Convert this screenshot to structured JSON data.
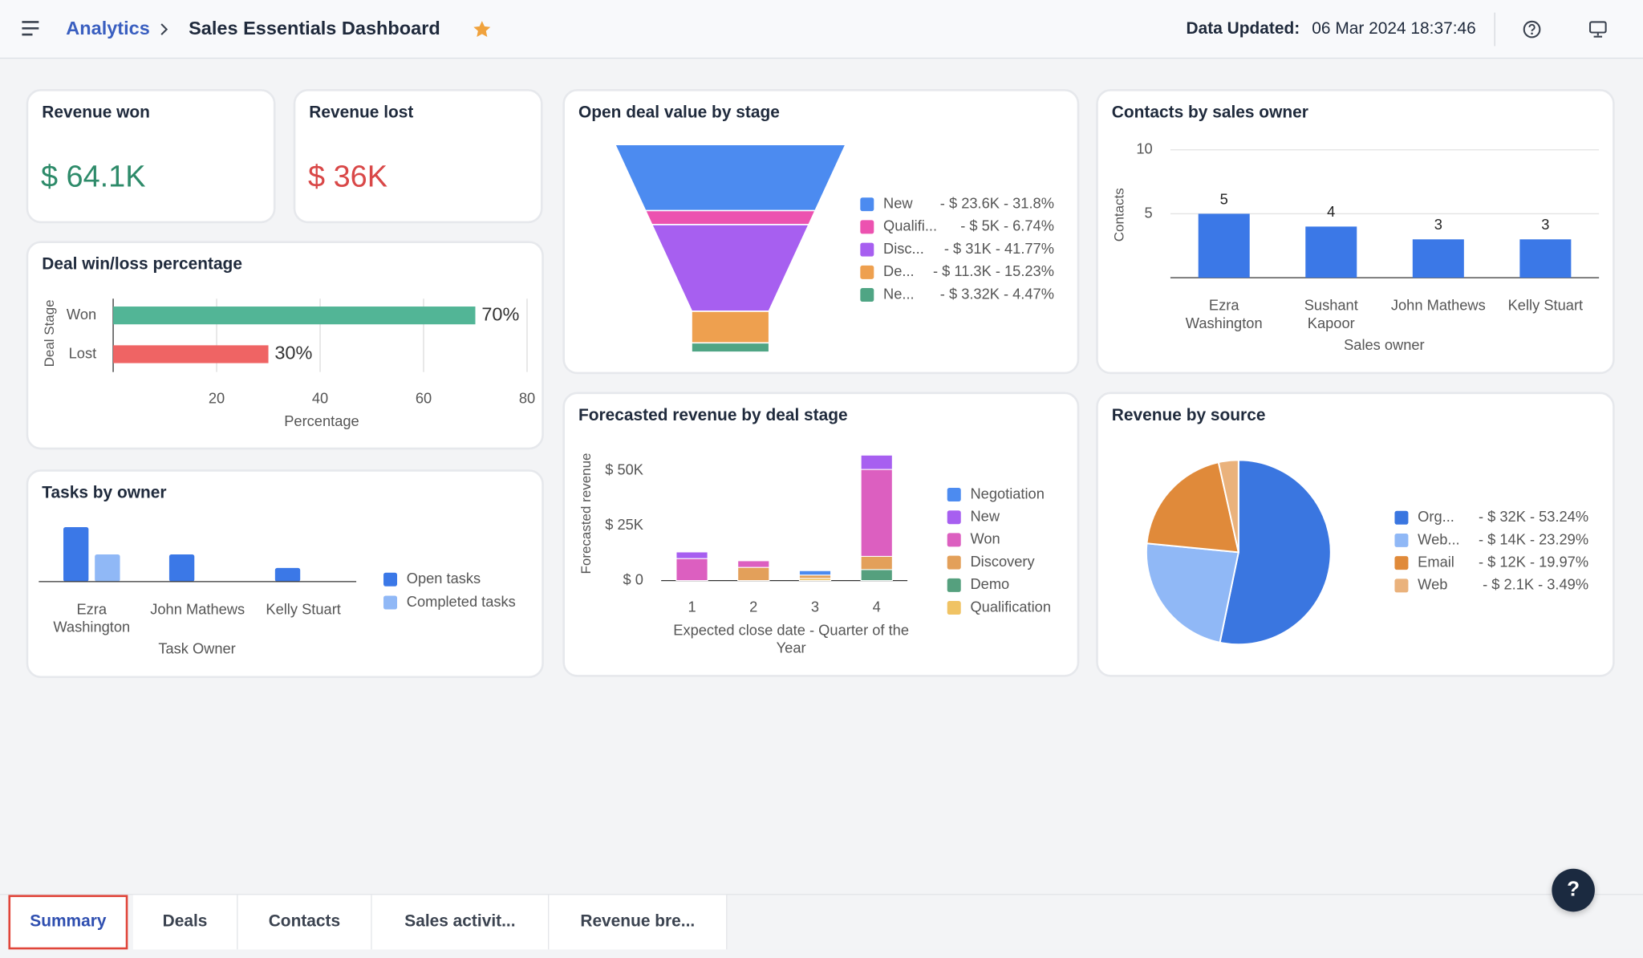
{
  "header": {
    "breadcrumb": "Analytics",
    "title": "Sales Essentials Dashboard",
    "updated_label": "Data Updated:",
    "updated_value": "06 Mar 2024 18:37:46"
  },
  "kpis": [
    {
      "title": "Revenue won",
      "value": "$ 64.1K",
      "color": "#2e8b6a"
    },
    {
      "title": "Revenue lost",
      "value": "$ 36K",
      "color": "#d94848"
    }
  ],
  "chart_data": [
    {
      "type": "hbar",
      "title": "Deal win/loss percentage",
      "categories": [
        "Won",
        "Lost"
      ],
      "values": [
        70,
        30
      ],
      "value_labels": [
        "70%",
        "30%"
      ],
      "colors": [
        "#52b596",
        "#ef6464"
      ],
      "xlim": [
        0,
        80
      ],
      "xticks": [
        20,
        40,
        60,
        80
      ],
      "xlabel": "Percentage",
      "ylabel": "Deal Stage",
      "grid": true
    },
    {
      "type": "funnel",
      "title": "Open deal value by stage",
      "categories": [
        "New",
        "Qualifi...",
        "Disc...",
        "De...",
        "Ne..."
      ],
      "values": [
        31.8,
        6.74,
        41.77,
        15.23,
        4.47
      ],
      "value_labels": [
        "- $ 23.6K - 31.8%",
        "- $ 5K - 6.74%",
        "- $ 31K - 41.77%",
        "- $ 11.3K - 15.23%",
        "- $ 3.32K - 4.47%"
      ],
      "colors": [
        "#4c8bf0",
        "#ec52b0",
        "#a75ff0",
        "#eea04f",
        "#4fa584"
      ]
    },
    {
      "type": "bar",
      "title": "Contacts by sales owner",
      "categories": [
        "Ezra Washington",
        "Sushant Kapoor",
        "John Mathews",
        "Kelly Stuart"
      ],
      "values": [
        5,
        4,
        3,
        3
      ],
      "color": "#3b78e7",
      "ylim": [
        0,
        10
      ],
      "yticks": [
        5,
        10
      ],
      "xlabel": "Sales owner",
      "ylabel": "Contacts",
      "grid": true
    },
    {
      "type": "grouped_bar",
      "title": "Tasks by owner",
      "categories": [
        "Ezra Washington",
        "John Mathews",
        "Kelly Stuart"
      ],
      "series": [
        {
          "name": "Open tasks",
          "color": "#3b78e7",
          "values": [
            4,
            2,
            1
          ]
        },
        {
          "name": "Completed tasks",
          "color": "#90b8f6",
          "values": [
            2,
            0,
            0
          ]
        }
      ],
      "xlabel": "Task Owner"
    },
    {
      "type": "stacked_bar",
      "title": "Forecasted revenue by deal stage",
      "categories": [
        1,
        2,
        3,
        4
      ],
      "series": [
        {
          "name": "Negotiation",
          "color": "#4c8bf0",
          "values": [
            0,
            0,
            2000,
            0
          ]
        },
        {
          "name": "New",
          "color": "#a75ff0",
          "values": [
            3000,
            0,
            0,
            6500
          ]
        },
        {
          "name": "Won",
          "color": "#dc5fc0",
          "values": [
            10000,
            3000,
            0,
            39500
          ]
        },
        {
          "name": "Discovery",
          "color": "#e3a05a",
          "values": [
            0,
            6000,
            1500,
            6000
          ]
        },
        {
          "name": "Demo",
          "color": "#55a07e",
          "values": [
            0,
            0,
            0,
            5000
          ]
        },
        {
          "name": "Qualification",
          "color": "#f0c364",
          "values": [
            0,
            0,
            1000,
            0
          ]
        }
      ],
      "ylim": [
        0,
        60000
      ],
      "yticks": [
        {
          "value": 0,
          "label": "$ 0"
        },
        {
          "value": 25000,
          "label": "$ 25K"
        },
        {
          "value": 50000,
          "label": "$ 50K"
        }
      ],
      "xlabel": "Expected close date - Quarter of the Year",
      "ylabel": "Forecasted revenue"
    },
    {
      "type": "pie",
      "title": "Revenue by source",
      "categories": [
        "Org...",
        "Web...",
        "Email",
        "Web"
      ],
      "values": [
        53.24,
        23.29,
        19.97,
        3.49
      ],
      "value_labels": [
        "- $ 32K - 53.24%",
        "- $ 14K - 23.29%",
        "- $ 12K - 19.97%",
        "- $ 2.1K - 3.49%"
      ],
      "colors": [
        "#3a76e0",
        "#90b8f6",
        "#e08a3a",
        "#eab27c"
      ]
    }
  ],
  "tabs": [
    "Summary",
    "Deals",
    "Contacts",
    "Sales activit...",
    "Revenue bre..."
  ],
  "help_button": "?"
}
